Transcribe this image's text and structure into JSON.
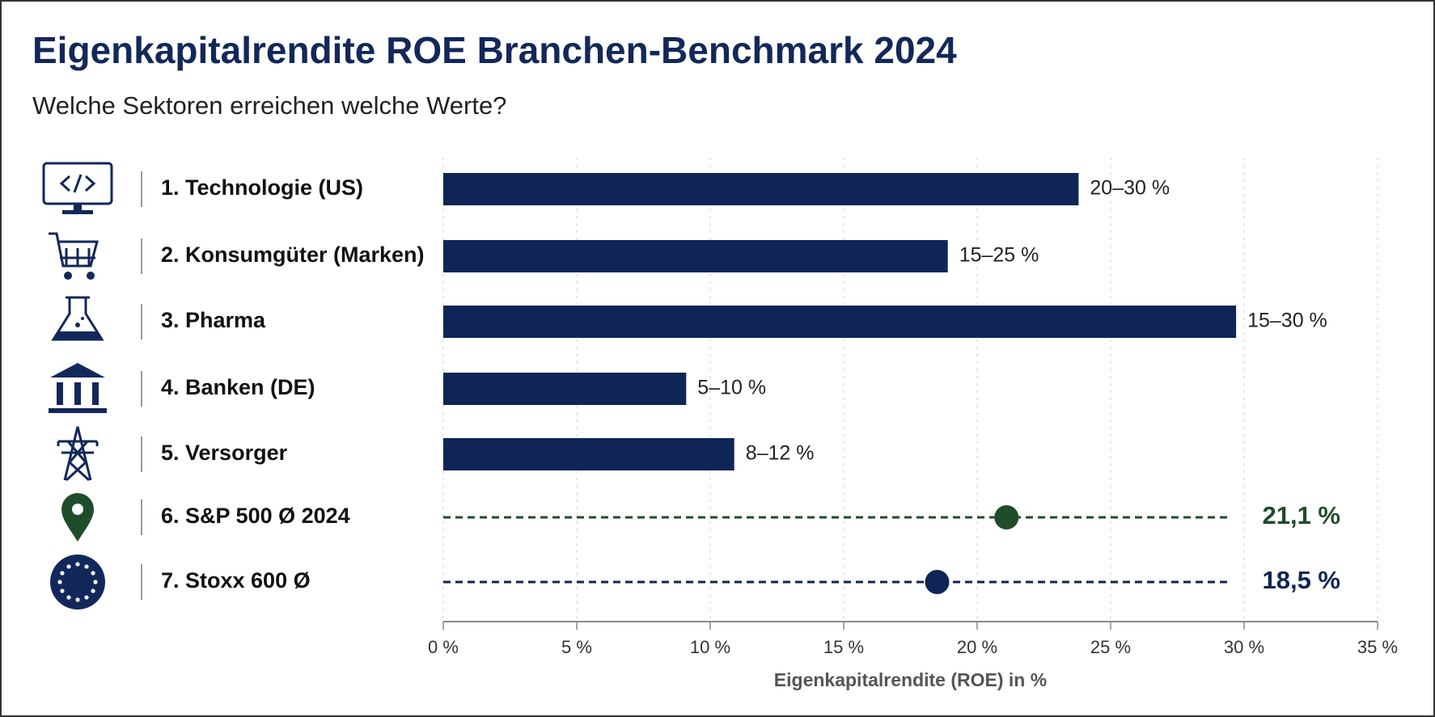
{
  "chart_data": {
    "type": "bar",
    "title": "Eigenkapitalrendite ROE Branchen-Benchmark 2024",
    "subtitle": "Welche Sektoren erreichen welche Werte?",
    "x_label": "Eigenkapitalrendite (ROE) in %",
    "categories": [
      "1. Technologie (US)",
      "2. Konsumgüter (Marken)",
      "3. Pharma",
      "4. Banken (DE)",
      "5. Versorger"
    ],
    "values": [
      23.8,
      18.9,
      29.7,
      9.1,
      10.9
    ],
    "range_labels": [
      "20–30 %",
      "15–25 %",
      "15–30 %",
      "5–10 %",
      "8–12 %"
    ],
    "color": "#0f2557",
    "benchmarks": [
      {
        "label": "6. S&P 500 Ø 2024",
        "value": 21.1,
        "value_label": "21,1 %",
        "color": "#1f4d2b"
      },
      {
        "label": "7. Stoxx 600 Ø",
        "value": 18.5,
        "value_label": "18,5 %",
        "color": "#0f2557"
      }
    ],
    "xlim": [
      0,
      35
    ],
    "xticks": [
      {
        "value": 0,
        "label": "0 %"
      },
      {
        "value": 5,
        "label": "5 %"
      },
      {
        "value": 10,
        "label": "10 %"
      },
      {
        "value": 15,
        "label": "15 %"
      },
      {
        "value": 20,
        "label": "20 %"
      },
      {
        "value": 25,
        "label": "25 %"
      },
      {
        "value": 30,
        "label": "30 %"
      },
      {
        "value": 35,
        "label": "35 %"
      }
    ],
    "grid": true
  }
}
